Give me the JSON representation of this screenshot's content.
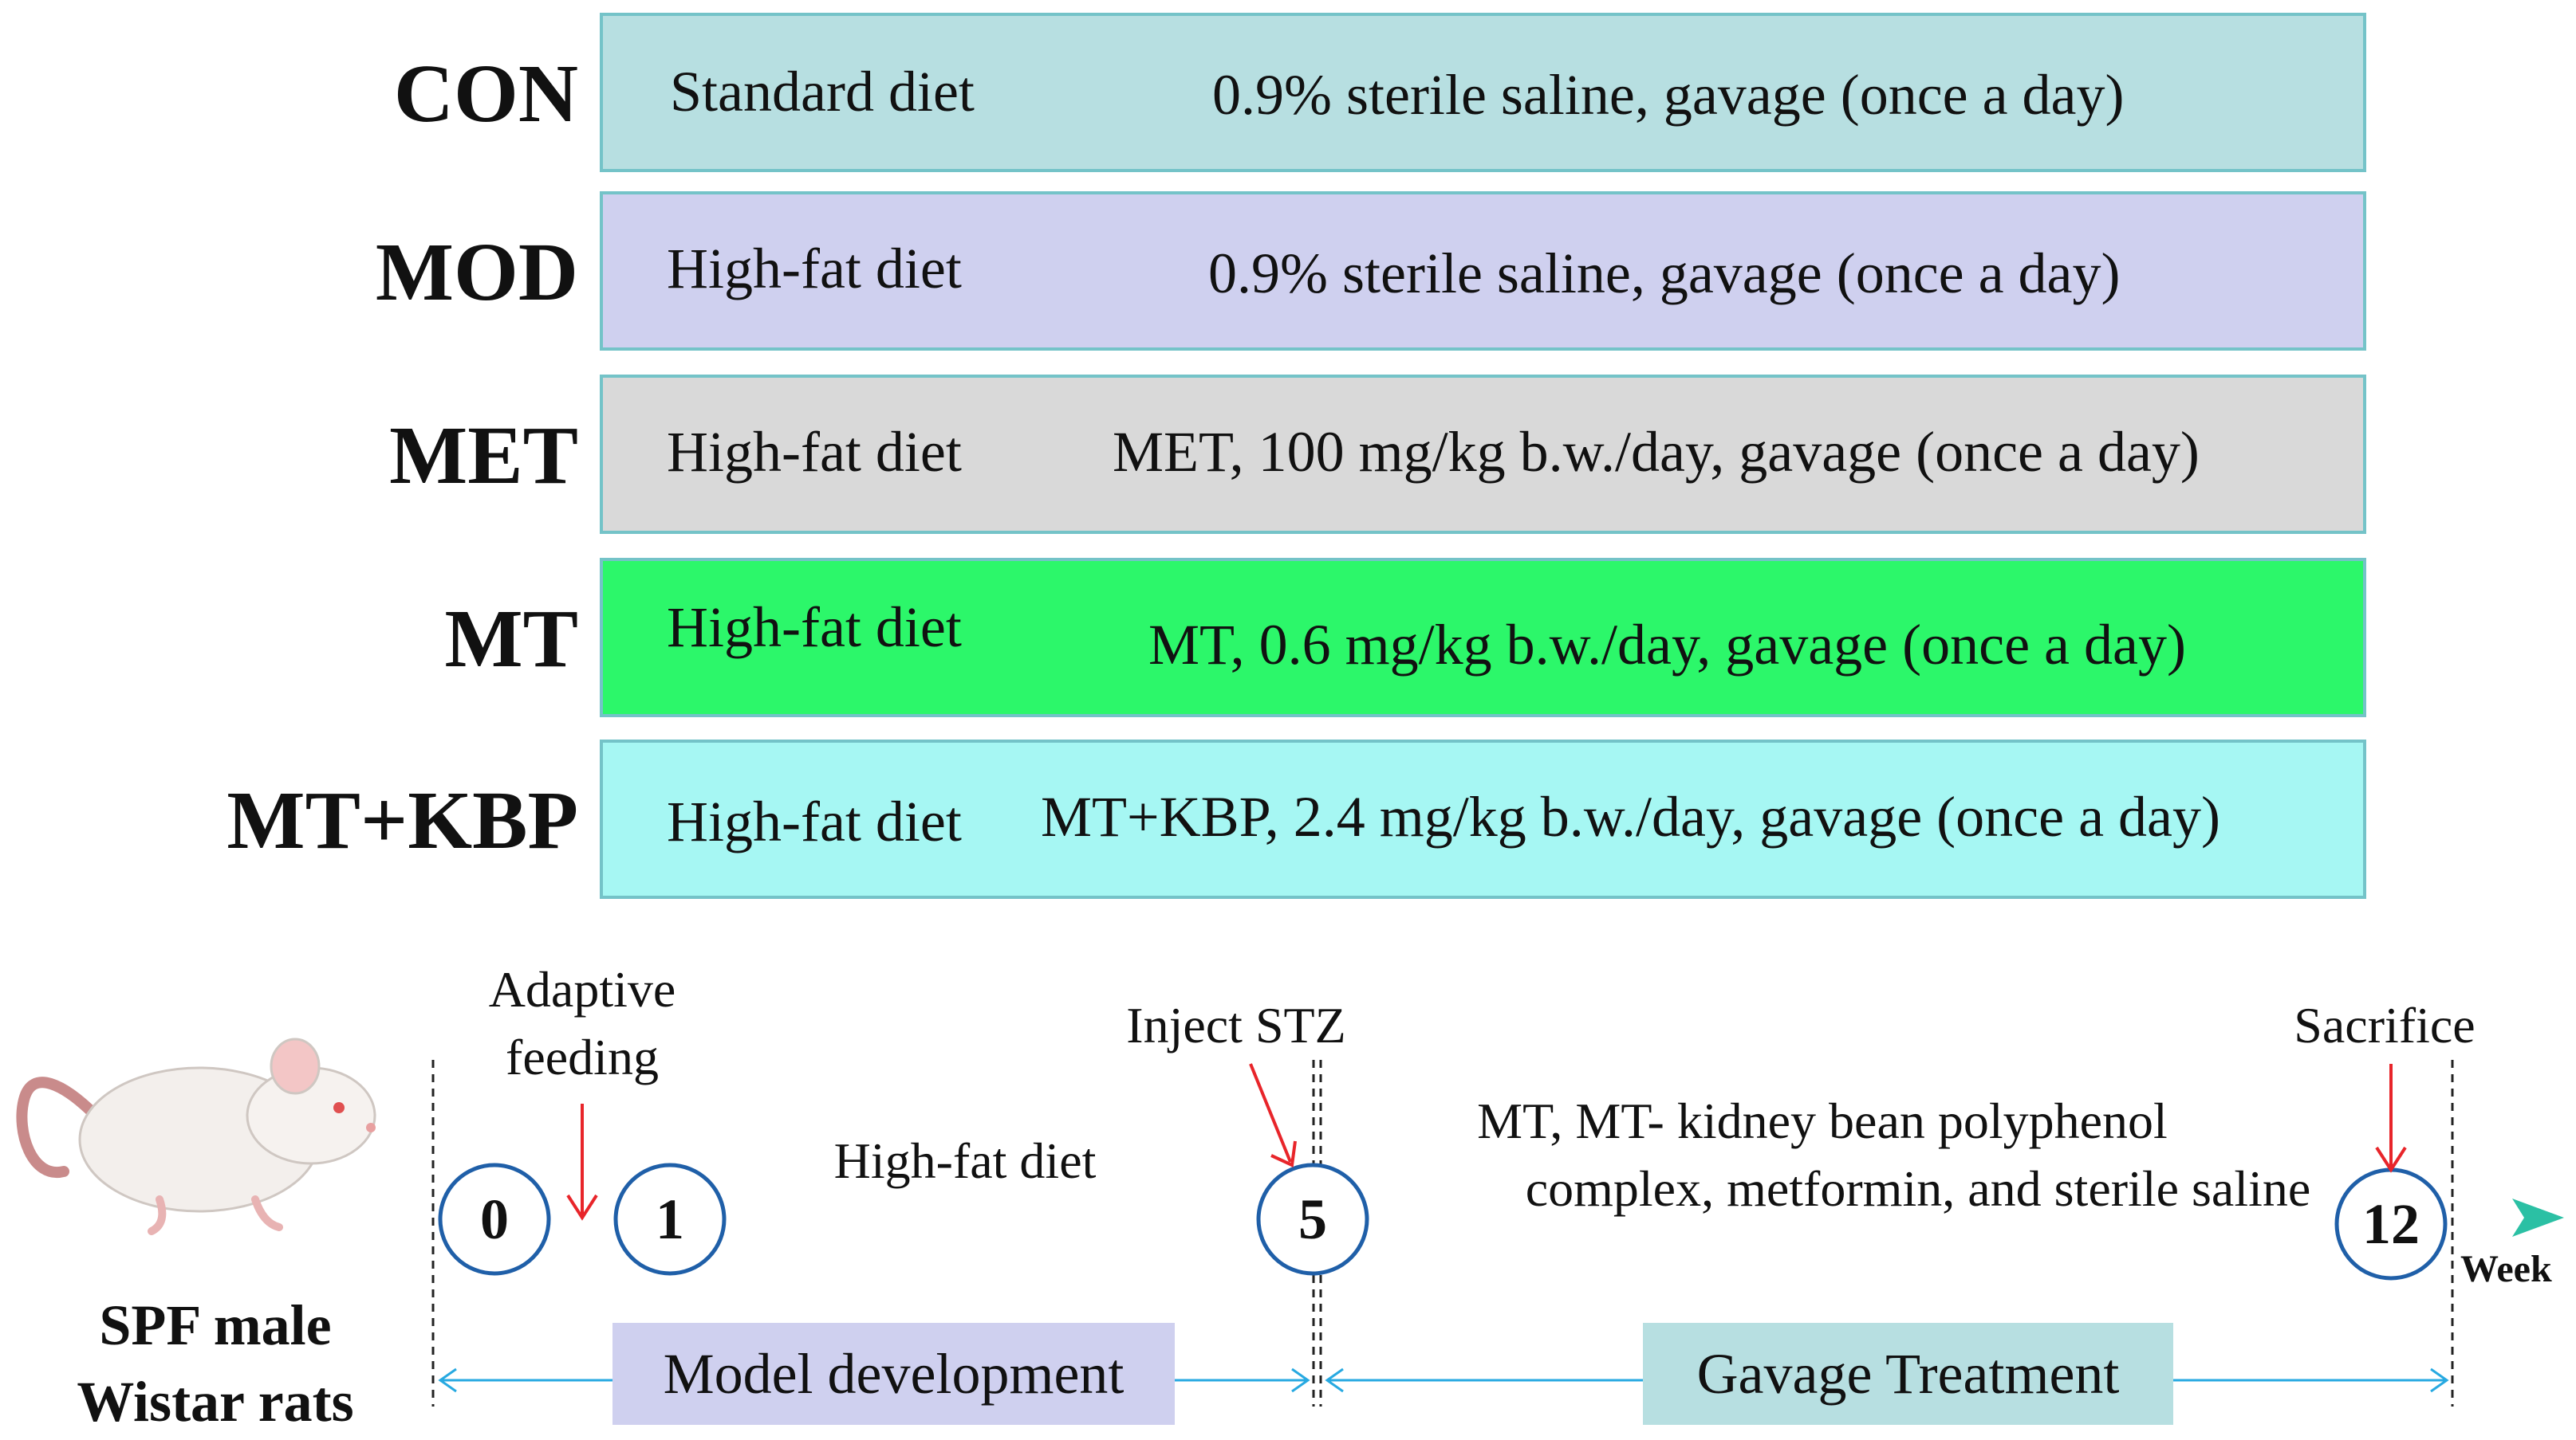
{
  "groups": [
    {
      "label": "CON",
      "diet": "Standard diet",
      "treatment": "0.9% sterile saline, gavage (once a day)",
      "color": "#b7dfe1"
    },
    {
      "label": "MOD",
      "diet": "High-fat diet",
      "treatment": "0.9% sterile saline, gavage (once a day)",
      "color": "#cfd0ef"
    },
    {
      "label": "MET",
      "diet": "High-fat diet",
      "treatment": "MET, 100 mg/kg b.w./day, gavage (once a day)",
      "color": "#d9d9d9"
    },
    {
      "label": "MT",
      "diet": "High-fat diet",
      "treatment": "MT, 0.6 mg/kg b.w./day, gavage (once a day)",
      "color": "#2cf76a"
    },
    {
      "label": "MT+KBP",
      "diet": "High-fat diet",
      "treatment": "MT+KBP, 2.4 mg/kg b.w./day, gavage (once a day)",
      "color": "#a6f7f3"
    }
  ],
  "timeline": {
    "subjects": [
      "SPF male",
      "Wistar rats"
    ],
    "weeks": [
      "0",
      "1",
      "5",
      "12"
    ],
    "axis_unit": "Week",
    "adaptive": [
      "Adaptive",
      "feeding"
    ],
    "inject": "Inject STZ",
    "sacrifice": "Sacrifice",
    "hfd": "High-fat diet",
    "gavage_desc": [
      "MT, MT- kidney bean polyphenol",
      "complex, metformin, and sterile saline"
    ],
    "phase1": "Model development",
    "phase2": "Gavage Treatment",
    "phase1_color": "#cfd0ef",
    "phase2_color": "#b7dfe1",
    "accent_arrow": "#e8252a",
    "span_arrow": "#27a9e1"
  }
}
